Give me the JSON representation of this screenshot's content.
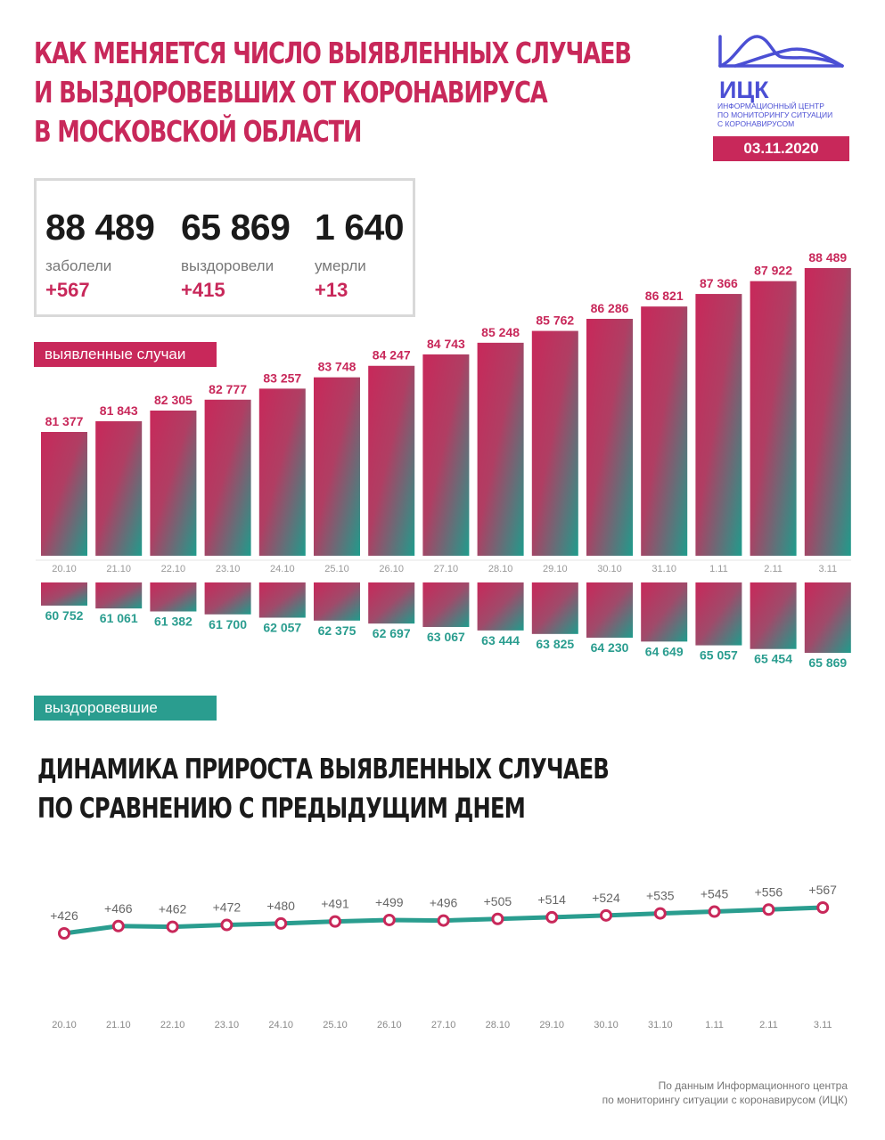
{
  "title": [
    "Как меняется число выявленных случаев",
    "и выздоровевших от коронавируса",
    "в Московской области"
  ],
  "logo": {
    "abbr": "ИЦК",
    "subtitle": [
      "Информационный центр",
      "по мониторингу ситуации",
      "с коронавирусом"
    ]
  },
  "date": "03.11.2020",
  "stats": [
    {
      "value": "88 489",
      "label": "заболели",
      "delta": "+567"
    },
    {
      "value": "65 869",
      "label": "выздоровели",
      "delta": "+415"
    },
    {
      "value": "1 640",
      "label": "умерли",
      "delta": "+13"
    }
  ],
  "tags": {
    "detected": "выявленные случаи",
    "recovered": "выздоровевшие"
  },
  "subtitle": [
    "Динамика прироста выявленных случаев",
    "по сравнению с предыдущим днем"
  ],
  "source": [
    "По данным Информационного центра",
    "по мониторингу ситуации с коронавирусом (ИЦК)"
  ],
  "colors": {
    "accent": "#c8285a",
    "teal": "#2a9d8f",
    "gray_text": "#777777"
  },
  "chart_data": [
    {
      "type": "bar",
      "categories": [
        "20.10",
        "21.10",
        "22.10",
        "23.10",
        "24.10",
        "25.10",
        "26.10",
        "27.10",
        "28.10",
        "29.10",
        "30.10",
        "31.10",
        "1.11",
        "2.11",
        "3.11"
      ],
      "series": [
        {
          "name": "выявленные случаи",
          "values": [
            81377,
            81843,
            82305,
            82777,
            83257,
            83748,
            84247,
            84743,
            85248,
            85762,
            86286,
            86821,
            87366,
            87922,
            88489
          ],
          "labels": [
            "81 377",
            "81 843",
            "82 305",
            "82 777",
            "83 257",
            "83 748",
            "84 247",
            "84 743",
            "85 248",
            "85 762",
            "86 286",
            "86 821",
            "87 366",
            "87 922",
            "88 489"
          ]
        },
        {
          "name": "выздоровевшие",
          "values": [
            60752,
            61061,
            61382,
            61700,
            62057,
            62375,
            62697,
            63067,
            63444,
            63825,
            64230,
            64649,
            65057,
            65454,
            65869
          ],
          "labels": [
            "60 752",
            "61 061",
            "61 382",
            "61 700",
            "62 057",
            "62 375",
            "62 697",
            "63 067",
            "63 444",
            "63 825",
            "64 230",
            "64 649",
            "65 057",
            "65 454",
            "65 869"
          ]
        }
      ]
    },
    {
      "type": "line",
      "categories": [
        "20.10",
        "21.10",
        "22.10",
        "23.10",
        "24.10",
        "25.10",
        "26.10",
        "27.10",
        "28.10",
        "29.10",
        "30.10",
        "31.10",
        "1.11",
        "2.11",
        "3.11"
      ],
      "series": [
        {
          "values": [
            426,
            466,
            462,
            472,
            480,
            491,
            499,
            496,
            505,
            514,
            524,
            535,
            545,
            556,
            567
          ],
          "labels": [
            "+426",
            "+466",
            "+462",
            "+472",
            "+480",
            "+491",
            "+499",
            "+496",
            "+505",
            "+514",
            "+524",
            "+535",
            "+545",
            "+556",
            "+567"
          ]
        }
      ]
    }
  ]
}
